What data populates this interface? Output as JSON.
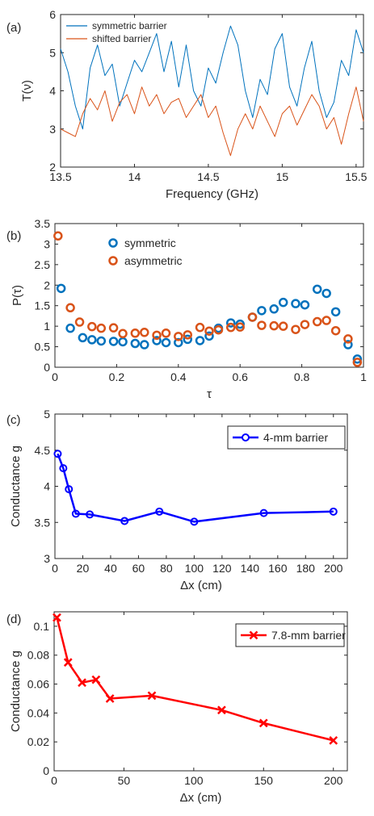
{
  "chart_data": [
    {
      "panel": "(a)",
      "type": "line",
      "xlabel": "Frequency (GHz)",
      "ylabel": "T(ν)",
      "xlim": [
        13.5,
        15.55
      ],
      "ylim": [
        2,
        6
      ],
      "xticks": [
        "13.5",
        "14",
        "14.5",
        "15",
        "15.5"
      ],
      "yticks": [
        "2",
        "3",
        "4",
        "5",
        "6"
      ],
      "legend": "top-left",
      "series": [
        {
          "name": "symmetric barrier",
          "color": "#0072BD",
          "x": [
            13.5,
            13.55,
            13.6,
            13.65,
            13.7,
            13.75,
            13.8,
            13.85,
            13.9,
            13.95,
            14.0,
            14.05,
            14.1,
            14.15,
            14.2,
            14.25,
            14.3,
            14.35,
            14.4,
            14.45,
            14.5,
            14.55,
            14.6,
            14.65,
            14.7,
            14.75,
            14.8,
            14.85,
            14.9,
            14.95,
            15.0,
            15.05,
            15.1,
            15.15,
            15.2,
            15.25,
            15.3,
            15.35,
            15.4,
            15.45,
            15.5,
            15.55
          ],
          "y": [
            5.1,
            4.5,
            3.6,
            3.0,
            4.6,
            5.2,
            4.4,
            4.7,
            3.6,
            4.2,
            4.8,
            4.5,
            5.0,
            5.5,
            4.5,
            5.3,
            4.1,
            5.2,
            4.0,
            3.6,
            4.6,
            4.2,
            5.0,
            5.7,
            5.2,
            4.0,
            3.3,
            4.3,
            3.9,
            5.1,
            5.5,
            4.1,
            3.6,
            4.6,
            5.3,
            4.0,
            3.3,
            3.7,
            4.8,
            4.4,
            5.6,
            5.0
          ]
        },
        {
          "name": "shifted barrier",
          "color": "#D95319",
          "x": [
            13.5,
            13.55,
            13.6,
            13.65,
            13.7,
            13.75,
            13.8,
            13.85,
            13.9,
            13.95,
            14.0,
            14.05,
            14.1,
            14.15,
            14.2,
            14.25,
            14.3,
            14.35,
            14.4,
            14.45,
            14.5,
            14.55,
            14.6,
            14.65,
            14.7,
            14.75,
            14.8,
            14.85,
            14.9,
            14.95,
            15.0,
            15.05,
            15.1,
            15.15,
            15.2,
            15.25,
            15.3,
            15.35,
            15.4,
            15.45,
            15.5,
            15.55
          ],
          "y": [
            3.0,
            2.9,
            2.8,
            3.4,
            3.8,
            3.5,
            4.0,
            3.2,
            3.7,
            3.9,
            3.4,
            4.1,
            3.6,
            3.9,
            3.4,
            3.7,
            3.8,
            3.3,
            3.6,
            3.9,
            3.3,
            3.6,
            2.9,
            2.3,
            3.0,
            3.4,
            3.0,
            3.6,
            3.2,
            2.8,
            3.4,
            3.6,
            3.1,
            3.5,
            3.9,
            3.6,
            3.0,
            3.3,
            2.6,
            3.4,
            4.1,
            3.2
          ]
        }
      ]
    },
    {
      "panel": "(b)",
      "type": "scatter",
      "xlabel": "τ",
      "ylabel": "P(τ)",
      "xlim": [
        0,
        1
      ],
      "ylim": [
        0,
        3.5
      ],
      "xticks": [
        "0",
        "0.2",
        "0.4",
        "0.6",
        "0.8",
        "1"
      ],
      "yticks": [
        "0",
        "0.5",
        "1",
        "1.5",
        "2",
        "2.5",
        "3",
        "3.5"
      ],
      "legend": "top-left",
      "series": [
        {
          "name": "symmetric",
          "color": "#0072BD",
          "x": [
            0.02,
            0.05,
            0.09,
            0.12,
            0.15,
            0.19,
            0.22,
            0.26,
            0.29,
            0.33,
            0.36,
            0.4,
            0.43,
            0.47,
            0.5,
            0.53,
            0.57,
            0.6,
            0.64,
            0.67,
            0.71,
            0.74,
            0.78,
            0.81,
            0.85,
            0.88,
            0.91,
            0.95,
            0.98
          ],
          "y": [
            1.92,
            0.95,
            0.72,
            0.67,
            0.64,
            0.63,
            0.62,
            0.58,
            0.55,
            0.65,
            0.6,
            0.6,
            0.68,
            0.65,
            0.76,
            0.95,
            1.08,
            1.05,
            1.22,
            1.38,
            1.42,
            1.58,
            1.55,
            1.52,
            1.9,
            1.8,
            1.35,
            0.55,
            0.2
          ]
        },
        {
          "name": "asymmetric",
          "color": "#D95319",
          "x": [
            0.01,
            0.05,
            0.08,
            0.12,
            0.15,
            0.19,
            0.22,
            0.26,
            0.29,
            0.33,
            0.36,
            0.4,
            0.43,
            0.47,
            0.5,
            0.53,
            0.57,
            0.6,
            0.64,
            0.67,
            0.71,
            0.74,
            0.78,
            0.81,
            0.85,
            0.88,
            0.91,
            0.95,
            0.98
          ],
          "y": [
            3.2,
            1.45,
            1.1,
            0.99,
            0.95,
            0.96,
            0.82,
            0.83,
            0.85,
            0.78,
            0.83,
            0.75,
            0.79,
            0.97,
            0.88,
            0.91,
            0.97,
            0.98,
            1.22,
            1.02,
            1.01,
            1.0,
            0.92,
            1.04,
            1.11,
            1.14,
            0.89,
            0.69,
            0.12
          ]
        }
      ]
    },
    {
      "panel": "(c)",
      "type": "line",
      "xlabel": "Δx (cm)",
      "ylabel": "Conductance g",
      "xlim": [
        0,
        210
      ],
      "ylim": [
        3,
        5
      ],
      "xticks": [
        "0",
        "20",
        "40",
        "60",
        "80",
        "100",
        "120",
        "140",
        "160",
        "180",
        "200"
      ],
      "yticks": [
        "3",
        "3.5",
        "4",
        "4.5",
        "5"
      ],
      "legend": "top-right",
      "series": [
        {
          "name": "4-mm barrier",
          "color": "#0000FF",
          "marker": "circle",
          "x": [
            2,
            6,
            10,
            15,
            25,
            50,
            75,
            100,
            150,
            200
          ],
          "y": [
            4.45,
            4.25,
            3.96,
            3.62,
            3.61,
            3.52,
            3.65,
            3.51,
            3.63,
            3.65
          ]
        }
      ]
    },
    {
      "panel": "(d)",
      "type": "line",
      "xlabel": "Δx (cm)",
      "ylabel": "Conductance g",
      "xlim": [
        0,
        210
      ],
      "ylim": [
        0,
        0.11
      ],
      "xticks": [
        "0",
        "50",
        "100",
        "150",
        "200"
      ],
      "yticks": [
        "0",
        "0.02",
        "0.04",
        "0.06",
        "0.08",
        "0.1"
      ],
      "legend": "top-right",
      "series": [
        {
          "name": "7.8-mm barrier",
          "color": "#FF0000",
          "marker": "x",
          "x": [
            2,
            10,
            20,
            30,
            40,
            70,
            120,
            150,
            200
          ],
          "y": [
            0.106,
            0.075,
            0.061,
            0.063,
            0.05,
            0.052,
            0.042,
            0.033,
            0.021
          ]
        }
      ]
    }
  ]
}
